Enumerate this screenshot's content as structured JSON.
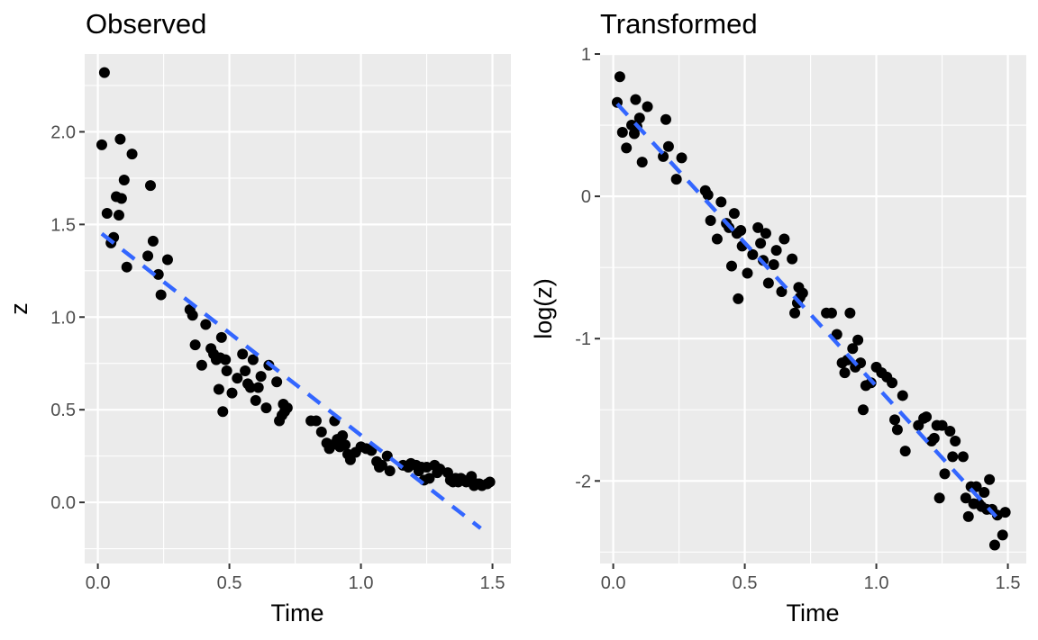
{
  "chart_data": [
    {
      "type": "scatter",
      "title": "Observed",
      "xlabel": "Time",
      "ylabel": "z",
      "xlim": [
        -0.05,
        1.57
      ],
      "ylim": [
        -0.33,
        2.42
      ],
      "x_ticks": [
        0.0,
        0.5,
        1.0,
        1.5
      ],
      "x_tick_labels": [
        "0.0",
        "0.5",
        "1.0",
        "1.5"
      ],
      "y_ticks": [
        0.0,
        0.5,
        1.0,
        1.5,
        2.0
      ],
      "y_tick_labels": [
        "0.0",
        "0.5",
        "1.0",
        "1.5",
        "2.0"
      ],
      "grid": true,
      "points": [
        [
          0.015,
          1.93
        ],
        [
          0.025,
          2.32
        ],
        [
          0.035,
          1.56
        ],
        [
          0.05,
          1.4
        ],
        [
          0.06,
          1.43
        ],
        [
          0.07,
          1.65
        ],
        [
          0.08,
          1.55
        ],
        [
          0.085,
          1.96
        ],
        [
          0.09,
          1.64
        ],
        [
          0.1,
          1.74
        ],
        [
          0.11,
          1.27
        ],
        [
          0.13,
          1.88
        ],
        [
          0.19,
          1.33
        ],
        [
          0.2,
          1.71
        ],
        [
          0.21,
          1.41
        ],
        [
          0.23,
          1.23
        ],
        [
          0.24,
          1.12
        ],
        [
          0.265,
          1.31
        ],
        [
          0.35,
          1.04
        ],
        [
          0.36,
          1.01
        ],
        [
          0.37,
          0.85
        ],
        [
          0.395,
          0.74
        ],
        [
          0.41,
          0.96
        ],
        [
          0.43,
          0.83
        ],
        [
          0.44,
          0.8
        ],
        [
          0.45,
          0.77
        ],
        [
          0.46,
          0.61
        ],
        [
          0.465,
          0.78
        ],
        [
          0.47,
          0.89
        ],
        [
          0.475,
          0.49
        ],
        [
          0.485,
          0.77
        ],
        [
          0.49,
          0.71
        ],
        [
          0.51,
          0.59
        ],
        [
          0.53,
          0.67
        ],
        [
          0.55,
          0.8
        ],
        [
          0.56,
          0.71
        ],
        [
          0.57,
          0.64
        ],
        [
          0.58,
          0.62
        ],
        [
          0.59,
          0.77
        ],
        [
          0.6,
          0.55
        ],
        [
          0.61,
          0.62
        ],
        [
          0.62,
          0.68
        ],
        [
          0.64,
          0.51
        ],
        [
          0.65,
          0.74
        ],
        [
          0.68,
          0.65
        ],
        [
          0.69,
          0.44
        ],
        [
          0.7,
          0.47
        ],
        [
          0.705,
          0.53
        ],
        [
          0.71,
          0.49
        ],
        [
          0.72,
          0.51
        ],
        [
          0.81,
          0.44
        ],
        [
          0.83,
          0.44
        ],
        [
          0.85,
          0.38
        ],
        [
          0.87,
          0.32
        ],
        [
          0.88,
          0.29
        ],
        [
          0.89,
          0.31
        ],
        [
          0.9,
          0.44
        ],
        [
          0.91,
          0.34
        ],
        [
          0.92,
          0.3
        ],
        [
          0.93,
          0.36
        ],
        [
          0.94,
          0.31
        ],
        [
          0.95,
          0.26
        ],
        [
          0.96,
          0.23
        ],
        [
          0.98,
          0.27
        ],
        [
          1.0,
          0.3
        ],
        [
          1.02,
          0.29
        ],
        [
          1.04,
          0.28
        ],
        [
          1.06,
          0.22
        ],
        [
          1.07,
          0.19
        ],
        [
          1.08,
          0.2
        ],
        [
          1.1,
          0.25
        ],
        [
          1.11,
          0.17
        ],
        [
          1.16,
          0.2
        ],
        [
          1.18,
          0.19
        ],
        [
          1.19,
          0.21
        ],
        [
          1.21,
          0.2
        ],
        [
          1.22,
          0.17
        ],
        [
          1.23,
          0.19
        ],
        [
          1.24,
          0.12
        ],
        [
          1.25,
          0.19
        ],
        [
          1.26,
          0.13
        ],
        [
          1.28,
          0.2
        ],
        [
          1.29,
          0.16
        ],
        [
          1.3,
          0.18
        ],
        [
          1.33,
          0.16
        ],
        [
          1.34,
          0.12
        ],
        [
          1.35,
          0.11
        ],
        [
          1.36,
          0.13
        ],
        [
          1.37,
          0.11
        ],
        [
          1.38,
          0.13
        ],
        [
          1.39,
          0.12
        ],
        [
          1.4,
          0.11
        ],
        [
          1.41,
          0.12
        ],
        [
          1.42,
          0.14
        ],
        [
          1.43,
          0.09
        ],
        [
          1.44,
          0.1
        ],
        [
          1.45,
          0.1
        ],
        [
          1.46,
          0.09
        ],
        [
          1.48,
          0.1
        ],
        [
          1.49,
          0.11
        ]
      ],
      "fit_line": {
        "x": [
          0.015,
          1.455
        ],
        "y": [
          1.45,
          -0.14
        ],
        "color": "#3366ff",
        "style": "dashed"
      }
    },
    {
      "type": "scatter",
      "title": "Transformed",
      "xlabel": "Time",
      "ylabel": "log(z)",
      "xlim": [
        -0.05,
        1.57
      ],
      "ylim": [
        -2.58,
        1.0
      ],
      "x_ticks": [
        0.0,
        0.5,
        1.0,
        1.5
      ],
      "x_tick_labels": [
        "0.0",
        "0.5",
        "1.0",
        "1.5"
      ],
      "y_ticks": [
        -2,
        -1,
        0,
        1
      ],
      "y_tick_labels": [
        "-2",
        "-1",
        "0",
        "1"
      ],
      "grid": true,
      "points": [
        [
          0.015,
          0.66
        ],
        [
          0.025,
          0.84
        ],
        [
          0.035,
          0.45
        ],
        [
          0.05,
          0.34
        ],
        [
          0.07,
          0.5
        ],
        [
          0.08,
          0.44
        ],
        [
          0.085,
          0.68
        ],
        [
          0.09,
          0.49
        ],
        [
          0.1,
          0.55
        ],
        [
          0.11,
          0.24
        ],
        [
          0.13,
          0.63
        ],
        [
          0.19,
          0.28
        ],
        [
          0.2,
          0.54
        ],
        [
          0.21,
          0.35
        ],
        [
          0.24,
          0.12
        ],
        [
          0.26,
          0.27
        ],
        [
          0.35,
          0.04
        ],
        [
          0.36,
          0.01
        ],
        [
          0.37,
          -0.17
        ],
        [
          0.395,
          -0.3
        ],
        [
          0.41,
          -0.04
        ],
        [
          0.43,
          -0.19
        ],
        [
          0.44,
          -0.22
        ],
        [
          0.45,
          -0.49
        ],
        [
          0.46,
          -0.12
        ],
        [
          0.47,
          -0.26
        ],
        [
          0.475,
          -0.72
        ],
        [
          0.485,
          -0.24
        ],
        [
          0.49,
          -0.35
        ],
        [
          0.51,
          -0.54
        ],
        [
          0.53,
          -0.41
        ],
        [
          0.55,
          -0.22
        ],
        [
          0.56,
          -0.33
        ],
        [
          0.57,
          -0.45
        ],
        [
          0.58,
          -0.26
        ],
        [
          0.59,
          -0.61
        ],
        [
          0.61,
          -0.48
        ],
        [
          0.62,
          -0.38
        ],
        [
          0.64,
          -0.67
        ],
        [
          0.65,
          -0.3
        ],
        [
          0.68,
          -0.44
        ],
        [
          0.69,
          -0.82
        ],
        [
          0.7,
          -0.75
        ],
        [
          0.705,
          -0.64
        ],
        [
          0.71,
          -0.71
        ],
        [
          0.72,
          -0.68
        ],
        [
          0.81,
          -0.82
        ],
        [
          0.83,
          -0.82
        ],
        [
          0.85,
          -0.97
        ],
        [
          0.87,
          -1.17
        ],
        [
          0.88,
          -1.24
        ],
        [
          0.89,
          -1.15
        ],
        [
          0.9,
          -0.82
        ],
        [
          0.91,
          -1.07
        ],
        [
          0.92,
          -1.2
        ],
        [
          0.93,
          -1.01
        ],
        [
          0.94,
          -1.17
        ],
        [
          0.95,
          -1.5
        ],
        [
          0.96,
          -1.33
        ],
        [
          0.98,
          -1.31
        ],
        [
          1.0,
          -1.2
        ],
        [
          1.02,
          -1.24
        ],
        [
          1.04,
          -1.27
        ],
        [
          1.06,
          -1.31
        ],
        [
          1.07,
          -1.57
        ],
        [
          1.08,
          -1.64
        ],
        [
          1.1,
          -1.4
        ],
        [
          1.11,
          -1.79
        ],
        [
          1.16,
          -1.61
        ],
        [
          1.18,
          -1.56
        ],
        [
          1.19,
          -1.55
        ],
        [
          1.21,
          -1.72
        ],
        [
          1.22,
          -1.7
        ],
        [
          1.23,
          -1.61
        ],
        [
          1.24,
          -2.12
        ],
        [
          1.25,
          -1.61
        ],
        [
          1.26,
          -1.95
        ],
        [
          1.28,
          -1.65
        ],
        [
          1.29,
          -1.83
        ],
        [
          1.3,
          -1.72
        ],
        [
          1.33,
          -1.83
        ],
        [
          1.34,
          -2.12
        ],
        [
          1.35,
          -2.25
        ],
        [
          1.36,
          -2.04
        ],
        [
          1.37,
          -2.16
        ],
        [
          1.38,
          -2.04
        ],
        [
          1.39,
          -2.16
        ],
        [
          1.4,
          -2.18
        ],
        [
          1.41,
          -2.08
        ],
        [
          1.42,
          -2.2
        ],
        [
          1.43,
          -1.99
        ],
        [
          1.44,
          -2.2
        ],
        [
          1.45,
          -2.45
        ],
        [
          1.46,
          -2.24
        ],
        [
          1.48,
          -2.38
        ],
        [
          1.49,
          -2.22
        ]
      ],
      "fit_line": {
        "x": [
          0.015,
          1.455
        ],
        "y": [
          0.65,
          -2.25
        ],
        "color": "#3366ff",
        "style": "dashed"
      }
    }
  ]
}
